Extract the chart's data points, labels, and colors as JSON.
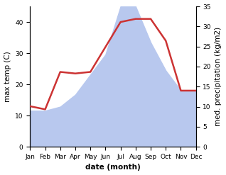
{
  "months": [
    "Jan",
    "Feb",
    "Mar",
    "Apr",
    "May",
    "Jun",
    "Jul",
    "Aug",
    "Sep",
    "Oct",
    "Nov",
    "Dec"
  ],
  "month_indices": [
    1,
    2,
    3,
    4,
    5,
    6,
    7,
    8,
    9,
    10,
    11,
    12
  ],
  "temp_max": [
    13,
    12,
    24,
    23.5,
    24,
    32,
    40,
    41,
    41,
    34,
    18,
    18
  ],
  "precipitation": [
    9,
    9,
    10,
    13,
    18,
    23,
    35,
    35,
    26,
    19,
    14,
    14
  ],
  "temp_color": "#cc3333",
  "precip_color": "#b8c8ee",
  "background_color": "#ffffff",
  "temp_ylim": [
    0,
    45
  ],
  "precip_ylim": [
    0,
    35
  ],
  "temp_yticks": [
    0,
    10,
    20,
    30,
    40
  ],
  "precip_yticks": [
    0,
    5,
    10,
    15,
    20,
    25,
    30,
    35
  ],
  "ylabel_left": "max temp (C)",
  "ylabel_right": "med. precipitation (kg/m2)",
  "xlabel": "date (month)",
  "label_fontsize": 7.5,
  "tick_fontsize": 6.5
}
